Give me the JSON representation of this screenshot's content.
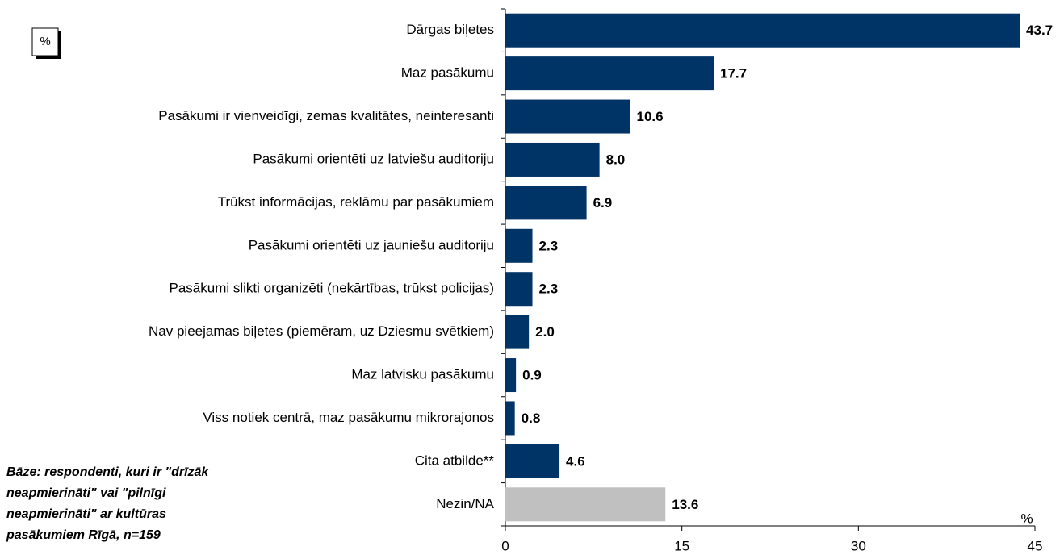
{
  "chart_data": {
    "type": "hbar",
    "unit_box": "%",
    "x_axis_label": "%",
    "note": [
      "Bāze: respondenti, kuri ir \"drīzāk",
      "neapmierināti\" vai \"pilnīgi",
      "neapmierināti\" ar kultūras",
      "pasākumiem Rīgā, n=159"
    ],
    "categories": [
      "Dārgas biļetes",
      "Maz pasākumu",
      "Pasākumi ir vienveidīgi, zemas kvalitātes, neinteresanti",
      "Pasākumi orientēti uz latviešu auditoriju",
      "Trūkst informācijas, reklāmu par pasākumiem",
      "Pasākumi orientēti uz jauniešu auditoriju",
      "Pasākumi slikti organizēti (nekārtības, trūkst policijas)",
      "Nav pieejamas biļetes (piemēram, uz Dziesmu svētkiem)",
      "Maz latvisku pasākumu",
      "Viss notiek centrā, maz pasākumu mikrorajonos",
      "Cita atbilde**",
      "Nezin/NA"
    ],
    "values": [
      43.7,
      17.7,
      10.6,
      8.0,
      6.9,
      2.3,
      2.3,
      2.0,
      0.9,
      0.8,
      4.6,
      13.6
    ],
    "value_labels": [
      "43.7",
      "17.7",
      "10.6",
      "8.0",
      "6.9",
      "2.3",
      "2.3",
      "2.0",
      "0.9",
      "0.8",
      "4.6",
      "13.6"
    ],
    "colors": [
      "#003366",
      "#003366",
      "#003366",
      "#003366",
      "#003366",
      "#003366",
      "#003366",
      "#003366",
      "#003366",
      "#003366",
      "#003366",
      "#c0c0c0"
    ],
    "xlim": [
      0,
      45
    ],
    "xticks": [
      0,
      15,
      30,
      45
    ]
  }
}
